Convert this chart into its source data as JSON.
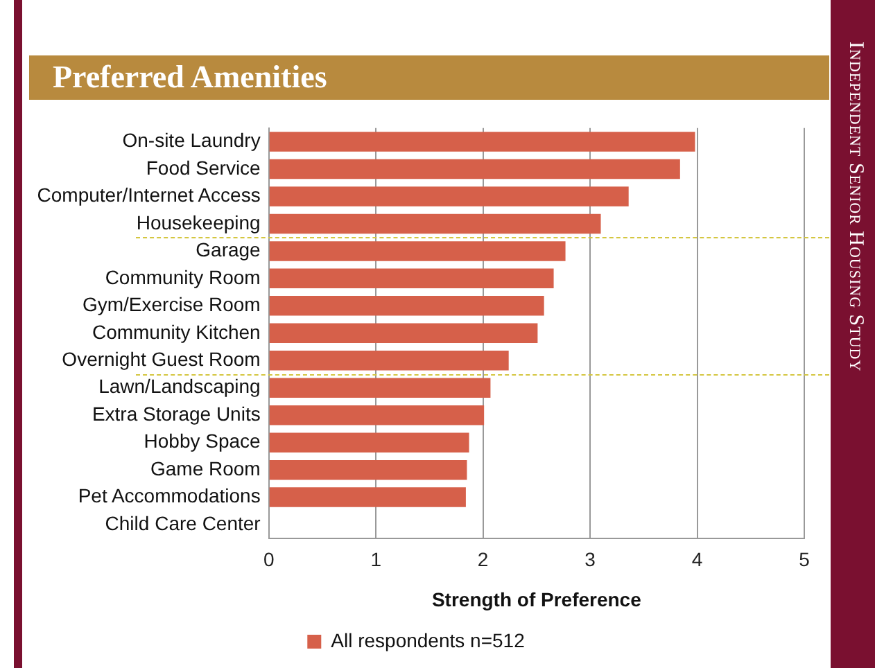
{
  "chart_data": {
    "type": "bar",
    "orientation": "horizontal",
    "title": "Preferred Amenities",
    "xlabel": "Strength of Preference",
    "categories": [
      "On-site Laundry",
      "Food Service",
      "Computer/Internet Access",
      "Housekeeping",
      "Garage",
      "Community Room",
      "Gym/Exercise Room",
      "Community Kitchen",
      "Overnight Guest Room",
      "Lawn/Landscaping",
      "Extra Storage Units",
      "Hobby Space",
      "Game Room",
      "Pet Accommodations",
      "Child Care Center"
    ],
    "series": [
      {
        "name": "All respondents n=512",
        "color": "#d6604a",
        "values": [
          3.98,
          3.84,
          3.36,
          3.1,
          2.77,
          2.66,
          2.57,
          2.51,
          2.24,
          2.07,
          2.01,
          1.87,
          1.85,
          1.84,
          0
        ]
      }
    ],
    "xlim": [
      0,
      5
    ],
    "xticks": [
      0,
      1,
      2,
      3,
      4,
      5
    ],
    "grid": "x",
    "legend": "bottom",
    "annotations": [
      "Independent Senior Housing Study"
    ]
  }
}
